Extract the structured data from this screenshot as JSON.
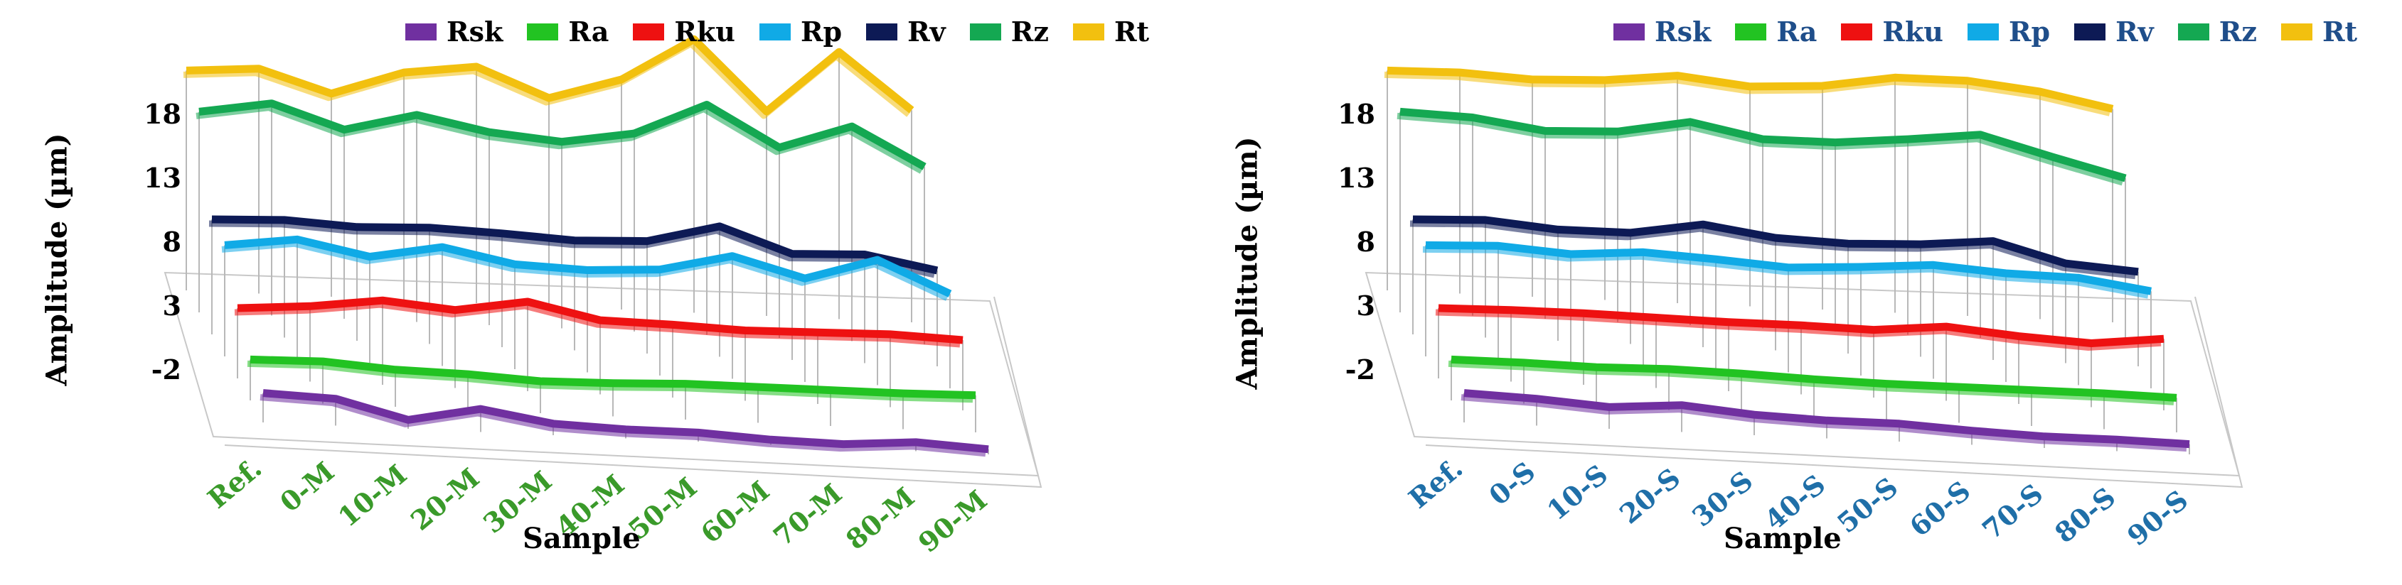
{
  "colors": {
    "Rsk": "#7030a0",
    "Ra": "#22c322",
    "Rku": "#ee1111",
    "Rp": "#10aae6",
    "Rv": "#0d1a55",
    "Rz": "#14a852",
    "Rt": "#f2c00f",
    "drop_lines": "#b8b8b8",
    "floor": "#c8c8c8"
  },
  "chart_data": [
    {
      "type": "line",
      "style": "3d-line",
      "title": "",
      "xlabel": "Sample",
      "ylabel": "Amplitude (µm)",
      "yticks": [
        "-2",
        "3",
        "8",
        "13",
        "18"
      ],
      "ylim": [
        -2,
        18
      ],
      "legend": [
        "Rsk",
        "Ra",
        "Rku",
        "Rp",
        "Rv",
        "Rz",
        "Rt"
      ],
      "legend_position": "top",
      "tick_color": "#3a9a2a",
      "categories": [
        "Ref.",
        "0-M",
        "10-M",
        "20-M",
        "30-M",
        "40-M",
        "50-M",
        "60-M",
        "70-M",
        "80-M",
        "90-M"
      ],
      "series": [
        {
          "name": "Rsk",
          "values": [
            0.3,
            0.1,
            -1.3,
            -0.2,
            -1.1,
            -1.3,
            -1.3,
            -1.6,
            -1.7,
            -1.3,
            -1.6
          ]
        },
        {
          "name": "Ra",
          "values": [
            1.2,
            1.3,
            0.9,
            0.8,
            0.5,
            0.6,
            0.8,
            0.8,
            0.8,
            0.8,
            0.9
          ]
        },
        {
          "name": "Rku",
          "values": [
            3.5,
            3.9,
            4.6,
            4.1,
            5.0,
            3.8,
            3.7,
            3.5,
            3.6,
            3.7,
            3.5
          ]
        },
        {
          "name": "Rp",
          "values": [
            6.7,
            7.4,
            6.3,
            7.3,
            6.2,
            6.0,
            6.3,
            7.6,
            6.1,
            7.8,
            5.4
          ]
        },
        {
          "name": "Rv",
          "values": [
            7.0,
            7.2,
            6.9,
            7.1,
            6.9,
            6.6,
            6.8,
            8.2,
            6.3,
            6.5,
            5.5
          ]
        },
        {
          "name": "Rz",
          "values": [
            13.7,
            14.6,
            12.8,
            14.2,
            13.1,
            12.6,
            13.5,
            16.0,
            12.9,
            14.8,
            11.9
          ]
        },
        {
          "name": "Rt",
          "values": [
            15.2,
            15.6,
            13.9,
            15.8,
            16.5,
            14.3,
            16.0,
            19.4,
            14.0,
            18.9,
            14.6
          ]
        }
      ]
    },
    {
      "type": "line",
      "style": "3d-line",
      "title": "",
      "xlabel": "Sample",
      "ylabel": "Amplitude (µm)",
      "yticks": [
        "-2",
        "3",
        "8",
        "13",
        "18"
      ],
      "ylim": [
        -2,
        18
      ],
      "legend": [
        "Rsk",
        "Ra",
        "Rku",
        "Rp",
        "Rv",
        "Rz",
        "Rt"
      ],
      "legend_position": "top",
      "tick_color": "#1f6fa8",
      "categories": [
        "Ref.",
        "0-S",
        "10-S",
        "20-S",
        "30-S",
        "40-S",
        "50-S",
        "60-S",
        "70-S",
        "80-S",
        "90-S"
      ],
      "series": [
        {
          "name": "Rsk",
          "values": [
            0.3,
            0.1,
            -0.3,
            0.1,
            -0.4,
            -0.6,
            -0.6,
            -0.9,
            -1.1,
            -1.1,
            -1.2
          ]
        },
        {
          "name": "Ra",
          "values": [
            1.2,
            1.2,
            1.1,
            1.2,
            1.1,
            0.9,
            0.8,
            0.8,
            0.8,
            0.8,
            0.7
          ]
        },
        {
          "name": "Rku",
          "values": [
            3.5,
            3.6,
            3.6,
            3.5,
            3.4,
            3.4,
            3.3,
            3.8,
            3.3,
            3.0,
            3.6
          ]
        },
        {
          "name": "Rp",
          "values": [
            6.7,
            6.9,
            6.5,
            6.9,
            6.6,
            6.2,
            6.5,
            6.9,
            6.5,
            6.4,
            5.6
          ]
        },
        {
          "name": "Rv",
          "values": [
            7.0,
            7.2,
            6.7,
            6.7,
            7.6,
            6.8,
            6.6,
            6.8,
            7.3,
            5.8,
            5.4
          ]
        },
        {
          "name": "Rz",
          "values": [
            13.7,
            13.5,
            12.7,
            12.9,
            13.9,
            12.8,
            12.8,
            13.3,
            13.9,
            12.4,
            11.0
          ]
        },
        {
          "name": "Rt",
          "values": [
            15.2,
            15.3,
            15.0,
            15.2,
            15.8,
            15.2,
            15.5,
            16.4,
            16.4,
            15.8,
            14.7
          ]
        }
      ]
    }
  ]
}
